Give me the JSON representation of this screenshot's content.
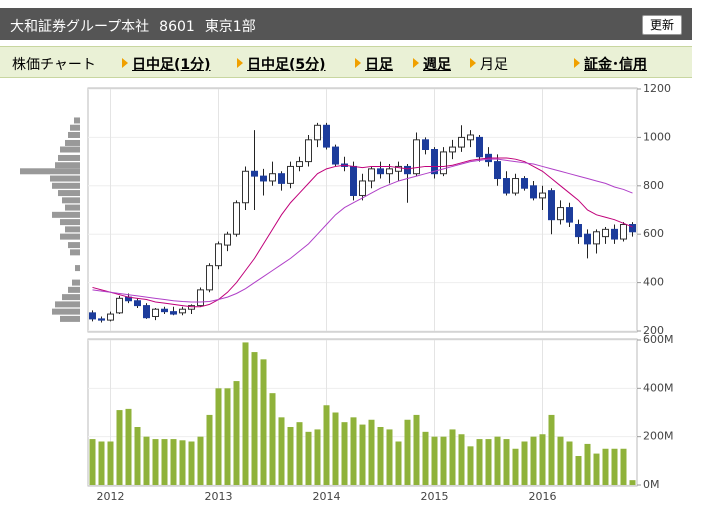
{
  "header": {
    "company": "大和証券グループ本社",
    "code": "8601",
    "market": "東京1部",
    "button": "更新"
  },
  "tabs": {
    "label": "株価チャート",
    "items": [
      "日中足(1分)",
      "日中足(5分)",
      "日足",
      "週足"
    ],
    "current": "月足",
    "extra": "証金･信用"
  },
  "chart_data": [
    {
      "type": "candlestick",
      "categories": [
        null,
        null,
        "2012",
        null,
        null,
        null,
        null,
        null,
        null,
        null,
        null,
        null,
        null,
        null,
        "2013",
        null,
        null,
        null,
        null,
        null,
        null,
        null,
        null,
        null,
        null,
        null,
        "2014",
        null,
        null,
        null,
        null,
        null,
        null,
        null,
        null,
        null,
        null,
        null,
        "2015",
        null,
        null,
        null,
        null,
        null,
        null,
        null,
        null,
        null,
        null,
        null,
        "2016",
        null,
        null,
        null,
        null,
        null,
        null,
        null,
        null,
        null,
        null
      ],
      "open": [
        275,
        250,
        245,
        275,
        340,
        325,
        305,
        260,
        290,
        280,
        275,
        290,
        305,
        370,
        470,
        555,
        600,
        730,
        860,
        840,
        820,
        850,
        810,
        880,
        900,
        990,
        1050,
        960,
        890,
        880,
        760,
        820,
        870,
        850,
        860,
        880,
        850,
        990,
        950,
        850,
        940,
        960,
        990,
        1000,
        930,
        900,
        830,
        770,
        830,
        800,
        750,
        780,
        660,
        710,
        640,
        600,
        560,
        590,
        620,
        580,
        640
      ],
      "high": [
        285,
        260,
        280,
        345,
        355,
        335,
        315,
        295,
        300,
        300,
        300,
        310,
        380,
        480,
        570,
        610,
        740,
        880,
        1030,
        870,
        900,
        860,
        900,
        920,
        1010,
        1060,
        1060,
        970,
        920,
        900,
        850,
        880,
        900,
        890,
        900,
        890,
        1020,
        1000,
        960,
        960,
        990,
        1050,
        1030,
        1010,
        960,
        930,
        860,
        850,
        840,
        820,
        800,
        790,
        740,
        730,
        660,
        620,
        620,
        630,
        640,
        650,
        650
      ],
      "low": [
        240,
        235,
        240,
        270,
        315,
        295,
        250,
        245,
        270,
        265,
        265,
        270,
        300,
        360,
        455,
        530,
        590,
        700,
        700,
        760,
        800,
        780,
        790,
        860,
        880,
        960,
        950,
        880,
        860,
        740,
        740,
        790,
        830,
        810,
        820,
        730,
        840,
        930,
        830,
        840,
        910,
        940,
        960,
        900,
        880,
        800,
        760,
        760,
        780,
        740,
        700,
        600,
        640,
        630,
        560,
        500,
        520,
        560,
        560,
        570,
        590
      ],
      "close": [
        250,
        245,
        270,
        335,
        325,
        305,
        255,
        290,
        280,
        270,
        290,
        305,
        370,
        470,
        560,
        600,
        730,
        860,
        840,
        820,
        850,
        810,
        880,
        900,
        990,
        1050,
        960,
        890,
        880,
        760,
        820,
        870,
        850,
        870,
        880,
        850,
        990,
        950,
        850,
        940,
        960,
        1000,
        1010,
        920,
        900,
        830,
        770,
        830,
        790,
        750,
        770,
        660,
        710,
        650,
        590,
        560,
        610,
        620,
        580,
        640,
        610
      ],
      "up_color": "#ffffff",
      "down_color": "#1c3c9c",
      "lines": [
        {
          "color": "#c0007a",
          "values": [
            380,
            370,
            360,
            350,
            340,
            335,
            330,
            320,
            315,
            310,
            305,
            300,
            300,
            310,
            330,
            360,
            400,
            450,
            500,
            560,
            620,
            680,
            730,
            770,
            810,
            850,
            870,
            880,
            885,
            880,
            875,
            880,
            880,
            880,
            875,
            870,
            875,
            880,
            880,
            880,
            885,
            895,
            905,
            910,
            915,
            915,
            915,
            910,
            900,
            880,
            860,
            830,
            800,
            770,
            740,
            700,
            680,
            670,
            660,
            645,
            630
          ]
        },
        {
          "color": "#b040c8",
          "values": [
            370,
            365,
            360,
            355,
            350,
            345,
            340,
            335,
            330,
            325,
            322,
            320,
            320,
            322,
            330,
            340,
            355,
            375,
            400,
            425,
            450,
            475,
            500,
            530,
            560,
            600,
            640,
            680,
            710,
            730,
            750,
            770,
            790,
            805,
            820,
            830,
            840,
            850,
            860,
            870,
            880,
            890,
            900,
            905,
            910,
            910,
            905,
            900,
            895,
            890,
            880,
            870,
            860,
            850,
            840,
            830,
            820,
            810,
            795,
            785,
            770
          ]
        }
      ],
      "volume_profile": {
        "color": "#999999",
        "prices": [
          1070,
          1040,
          1010,
          977,
          950,
          915,
          885,
          860,
          830,
          800,
          770,
          740,
          710,
          680,
          650,
          620,
          590,
          555,
          525,
          460,
          400,
          370,
          340,
          310,
          280,
          250
        ],
        "values": [
          6,
          10,
          12,
          15,
          20,
          22,
          25,
          60,
          30,
          28,
          22,
          18,
          15,
          28,
          20,
          15,
          20,
          12,
          10,
          5,
          8,
          12,
          18,
          25,
          28,
          20
        ]
      },
      "ylim": [
        200,
        1200
      ],
      "yticks": [
        200,
        400,
        600,
        800,
        1000,
        1200
      ],
      "grid": true
    },
    {
      "type": "bar",
      "color": "#8fb23a",
      "values": [
        190,
        180,
        180,
        310,
        315,
        240,
        200,
        190,
        190,
        190,
        185,
        180,
        200,
        290,
        400,
        400,
        430,
        590,
        550,
        520,
        380,
        280,
        240,
        260,
        220,
        230,
        330,
        300,
        260,
        280,
        250,
        270,
        240,
        230,
        180,
        270,
        290,
        220,
        200,
        200,
        230,
        210,
        160,
        190,
        190,
        200,
        190,
        150,
        180,
        200,
        210,
        290,
        200,
        180,
        120,
        170,
        130,
        150,
        150,
        150,
        20
      ],
      "ylim": [
        0,
        600
      ],
      "yticks": [
        {
          "value": 0,
          "label": "0M"
        },
        {
          "value": 200,
          "label": "200M"
        },
        {
          "value": 400,
          "label": "400M"
        },
        {
          "value": 600,
          "label": "600M"
        }
      ],
      "grid": true
    }
  ]
}
